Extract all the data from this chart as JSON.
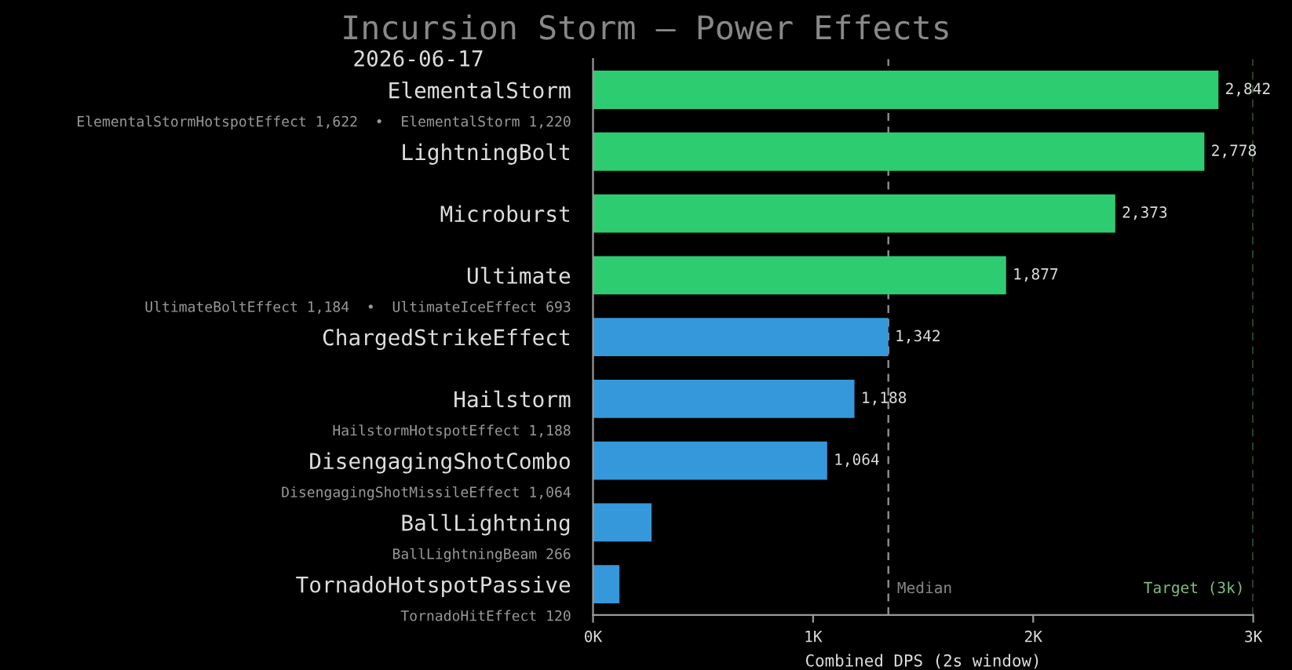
{
  "chart_data": {
    "type": "bar",
    "orientation": "horizontal",
    "title": "Incursion Storm — Power Effects",
    "subtitle": "2026-06-17",
    "xlabel": "Combined DPS (2s window)",
    "categories": [
      "ElementalStorm",
      "LightningBolt",
      "Microburst",
      "Ultimate",
      "ChargedStrikeEffect",
      "Hailstorm",
      "DisengagingShotCombo",
      "BallLightning",
      "TornadoHotspotPassive"
    ],
    "values": [
      2842,
      2778,
      2373,
      1877,
      1342,
      1188,
      1064,
      266,
      120
    ],
    "colors": [
      "#2ecc71",
      "#2ecc71",
      "#2ecc71",
      "#2ecc71",
      "#3498db",
      "#3498db",
      "#3498db",
      "#3498db",
      "#3498db"
    ],
    "value_labels": [
      "2,842",
      "2,778",
      "2,373",
      "1,877",
      "1,342",
      "1,188",
      "1,064",
      null,
      null
    ],
    "xlim": [
      0,
      3000
    ],
    "xticks": [
      {
        "value": 0,
        "label": "0K"
      },
      {
        "value": 1000,
        "label": "1K"
      },
      {
        "value": 2000,
        "label": "2K"
      },
      {
        "value": 3000,
        "label": "3K"
      }
    ],
    "annotations": [
      "ElementalStormHotspotEffect 1,622  •  ElementalStorm 1,220",
      null,
      null,
      "UltimateBoltEffect 1,184  •  UltimateIceEffect 693",
      null,
      "HailstormHotspotEffect 1,188",
      "DisengagingShotMissileEffect 1,064",
      "BallLightningBeam 266",
      "TornadoHitEffect 120"
    ],
    "ref_lines": [
      {
        "axis": "x",
        "value": 1342,
        "label": "Median",
        "color": "#888888",
        "line_style": "dashed"
      },
      {
        "axis": "x",
        "value": 3000,
        "label": "Target (3k)",
        "color": "#3d6b3d",
        "line_style": "dashed"
      }
    ],
    "grid": false
  }
}
